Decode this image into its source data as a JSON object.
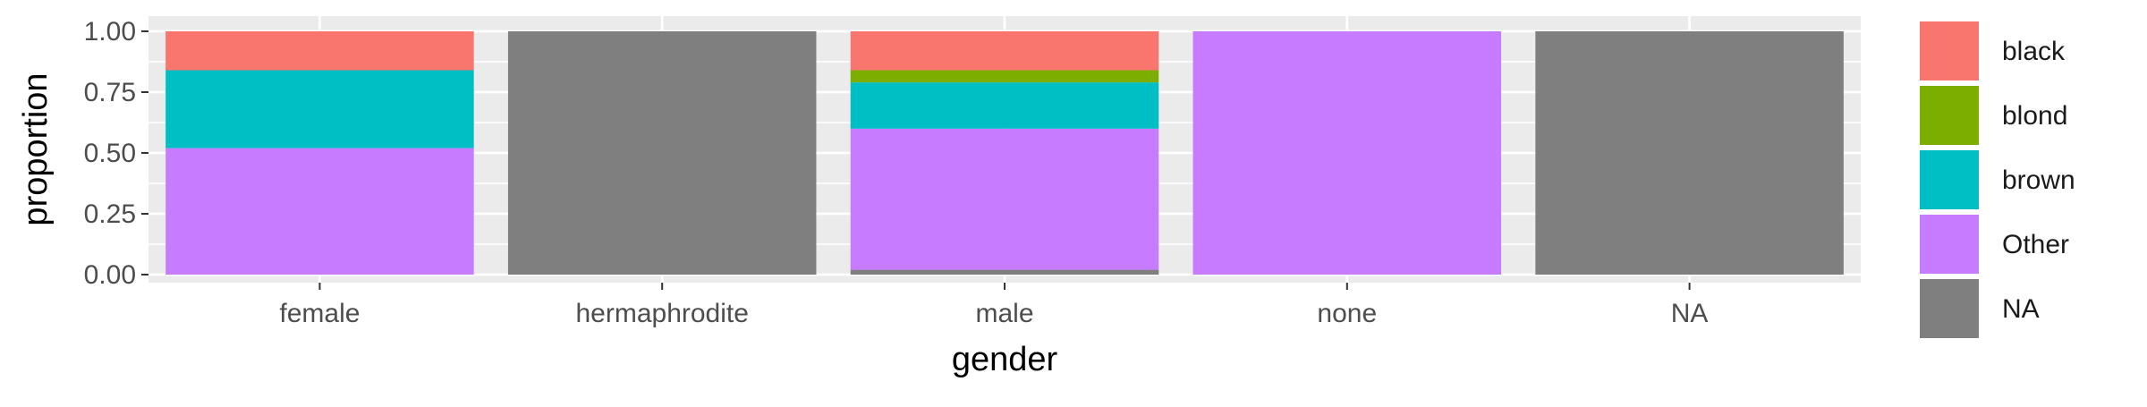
{
  "chart_data": {
    "type": "bar",
    "stacked": true,
    "xlabel": "gender",
    "ylabel": "proportion",
    "ylim": [
      0,
      1
    ],
    "yticks": [
      "0.00",
      "0.25",
      "0.50",
      "0.75",
      "1.00"
    ],
    "categories": [
      "female",
      "hermaphrodite",
      "male",
      "none",
      "NA"
    ],
    "stack_order_bottom_to_top": [
      "NA",
      "Other",
      "brown",
      "blond",
      "black"
    ],
    "series": [
      {
        "name": "black",
        "color": "#F8766D",
        "values": [
          0.16,
          0.0,
          0.16,
          0.0,
          0.0
        ]
      },
      {
        "name": "blond",
        "color": "#7CAE00",
        "values": [
          0.0,
          0.0,
          0.05,
          0.0,
          0.0
        ]
      },
      {
        "name": "brown",
        "color": "#00BFC4",
        "values": [
          0.32,
          0.0,
          0.19,
          0.0,
          0.0
        ]
      },
      {
        "name": "Other",
        "color": "#C77CFF",
        "values": [
          0.52,
          0.0,
          0.58,
          1.0,
          0.0
        ]
      },
      {
        "name": "NA",
        "color": "#7F7F7F",
        "values": [
          0.0,
          1.0,
          0.02,
          0.0,
          1.0
        ]
      }
    ],
    "legend": {
      "position": "right",
      "entries": [
        "black",
        "blond",
        "brown",
        "Other",
        "NA"
      ]
    },
    "grid": true,
    "theme": {
      "panel_background": "#EBEBEB",
      "grid_color": "#FFFFFF",
      "text_color": "#4D4D4D",
      "title_color": "#000000"
    }
  }
}
